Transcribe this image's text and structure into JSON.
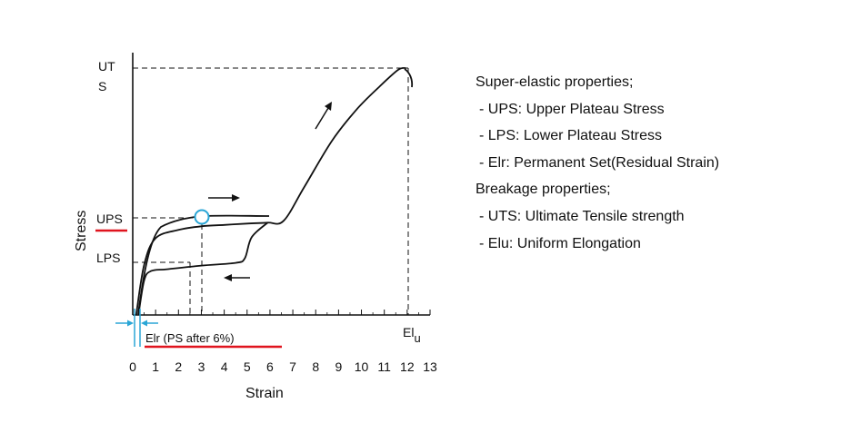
{
  "chart_data": {
    "type": "line",
    "title": "",
    "xlabel": "Strain",
    "ylabel": "Stress",
    "xlim": [
      0,
      13
    ],
    "x_ticks": [
      "0",
      "1",
      "2",
      "3",
      "4",
      "5",
      "6",
      "7",
      "8",
      "9",
      "10",
      "11",
      "12",
      "13"
    ],
    "y_ticks": [
      "UPS",
      "LPS"
    ],
    "y_labels": {
      "uts_line1": "UT",
      "uts_line2": "S",
      "ups": "UPS",
      "lps": "LPS"
    },
    "x_marker": {
      "main": "El",
      "sub": "u"
    },
    "residual_label": "Elr (PS after 6%)",
    "accent_color": "#e0141e",
    "marker_color": "#2aa6d6",
    "grid": false,
    "series": [
      {
        "role": "loading",
        "points": [
          [
            0.15,
            0
          ],
          [
            0.5,
            55
          ],
          [
            1,
            84
          ],
          [
            2,
            93
          ],
          [
            3,
            97
          ],
          [
            4,
            98.5
          ],
          [
            5,
            100
          ],
          [
            5.9,
            101
          ],
          [
            6.6,
            103
          ],
          [
            7.5,
            140
          ],
          [
            8.7,
            190
          ],
          [
            9.8,
            225
          ],
          [
            10.8,
            250
          ],
          [
            11.6,
            268
          ],
          [
            11.95,
            270
          ]
        ]
      },
      {
        "role": "unloading",
        "points": [
          [
            5.9,
            101
          ],
          [
            5.2,
            85
          ],
          [
            4.9,
            62
          ],
          [
            4.5,
            57
          ],
          [
            3,
            54
          ],
          [
            1.5,
            50
          ],
          [
            0.8,
            48
          ],
          [
            0.5,
            38
          ],
          [
            0.25,
            0
          ]
        ]
      }
    ]
  },
  "legend": {
    "lines": [
      "Super-elastic properties;",
      " - UPS: Upper Plateau Stress",
      " - LPS: Lower Plateau Stress",
      " - Elr: Permanent Set(Residual Strain)",
      "Breakage properties;",
      " - UTS: Ultimate Tensile strength",
      " - Elu: Uniform Elongation"
    ]
  }
}
